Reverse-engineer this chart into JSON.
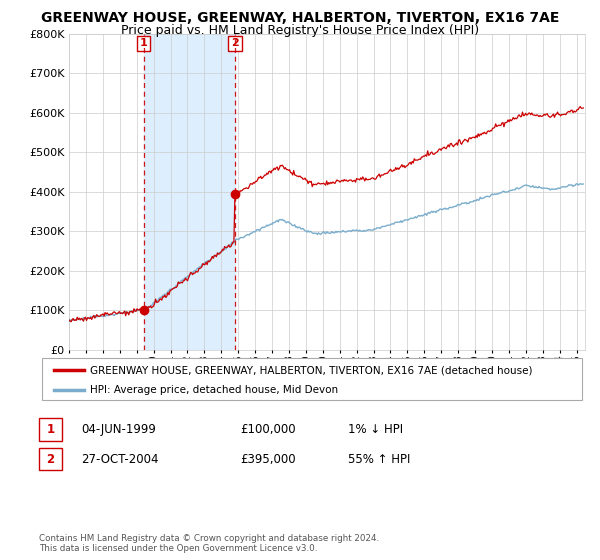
{
  "title": "GREENWAY HOUSE, GREENWAY, HALBERTON, TIVERTON, EX16 7AE",
  "subtitle": "Price paid vs. HM Land Registry's House Price Index (HPI)",
  "red_line_label": "GREENWAY HOUSE, GREENWAY, HALBERTON, TIVERTON, EX16 7AE (detached house)",
  "blue_line_label": "HPI: Average price, detached house, Mid Devon",
  "transaction1_date": "04-JUN-1999",
  "transaction1_price": "£100,000",
  "transaction1_hpi": "1% ↓ HPI",
  "transaction1_year": 1999.42,
  "transaction1_value": 100000,
  "transaction2_date": "27-OCT-2004",
  "transaction2_price": "£395,000",
  "transaction2_hpi": "55% ↑ HPI",
  "transaction2_year": 2004.82,
  "transaction2_value": 395000,
  "copyright_text": "Contains HM Land Registry data © Crown copyright and database right 2024.\nThis data is licensed under the Open Government Licence v3.0.",
  "ylim": [
    0,
    800000
  ],
  "xlim_start": 1995.0,
  "xlim_end": 2025.5,
  "background_color": "#ffffff",
  "grid_color": "#cccccc",
  "red_color": "#cc0000",
  "blue_color": "#7aadcc",
  "shade_color": "#ddeeff",
  "title_fontsize": 10,
  "subtitle_fontsize": 9
}
